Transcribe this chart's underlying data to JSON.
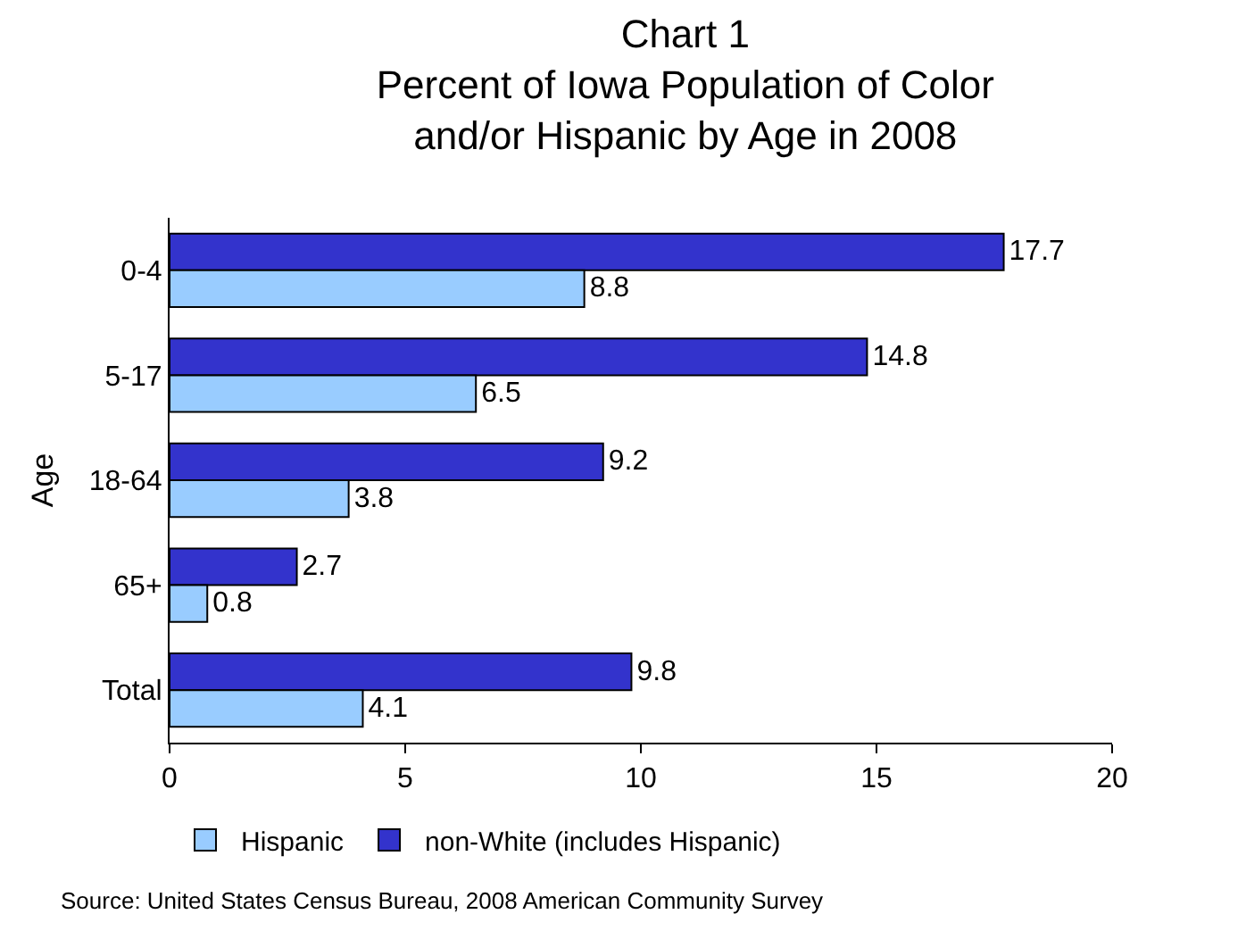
{
  "chart_data": {
    "type": "bar",
    "orientation": "horizontal",
    "title": "Chart 1\nPercent of Iowa Population of Color\nand/or Hispanic by Age in 2008",
    "ylabel": "Age",
    "categories": [
      "0-4",
      "5-17",
      "18-64",
      "65+",
      "Total"
    ],
    "series": [
      {
        "name": "Hispanic",
        "color": "#99ccff",
        "values": [
          8.8,
          6.5,
          3.8,
          0.8,
          4.1
        ]
      },
      {
        "name": "non-White (includes Hispanic)",
        "color": "#3333cc",
        "values": [
          17.7,
          14.8,
          9.2,
          2.7,
          9.8
        ]
      }
    ],
    "xlim": [
      0,
      20
    ],
    "xticks": [
      0,
      5,
      10,
      15,
      20
    ],
    "legend": "bottom",
    "data_labels": true,
    "annotations": [
      "Source: United States Census Bureau, 2008 American Community Survey"
    ]
  }
}
